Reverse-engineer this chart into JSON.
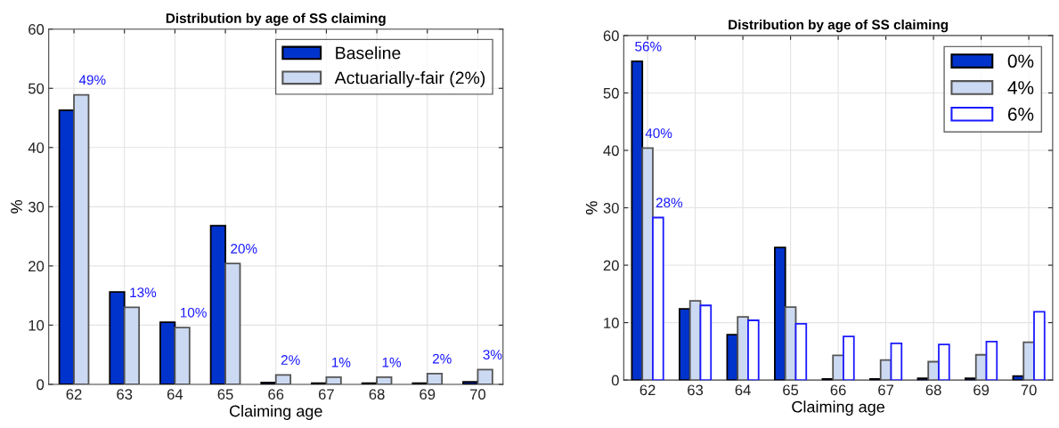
{
  "chart_data": [
    {
      "type": "bar",
      "title": "Distribution by age of SS claiming",
      "xlabel": "Claiming age",
      "ylabel": "%",
      "categories": [
        "62",
        "63",
        "64",
        "65",
        "66",
        "67",
        "68",
        "69",
        "70"
      ],
      "ylim": [
        0,
        60
      ],
      "yticks": [
        0,
        10,
        20,
        30,
        40,
        50,
        60
      ],
      "grid": true,
      "legend": "top right",
      "series": [
        {
          "name": "Baseline",
          "color": "#0033cc",
          "values": [
            46.3,
            15.6,
            10.5,
            26.8,
            0.3,
            0.2,
            0.2,
            0.2,
            0.4
          ]
        },
        {
          "name": "Actuarially-fair (2%)",
          "color": "#ccd9f2",
          "values": [
            48.9,
            13.0,
            9.6,
            20.4,
            1.6,
            1.2,
            1.2,
            1.8,
            2.5
          ],
          "value_labels": [
            "49%",
            "13%",
            "10%",
            "20%",
            "2%",
            "1%",
            "1%",
            "2%",
            "3%"
          ]
        }
      ]
    },
    {
      "type": "bar",
      "title": "Distribution by age of SS claiming",
      "xlabel": "Claiming age",
      "ylabel": "%",
      "categories": [
        "62",
        "63",
        "64",
        "65",
        "66",
        "67",
        "68",
        "69",
        "70"
      ],
      "ylim": [
        0,
        60
      ],
      "yticks": [
        0,
        10,
        20,
        30,
        40,
        50,
        60
      ],
      "grid": true,
      "legend": "top right",
      "series": [
        {
          "name": "0%",
          "color": "#0033cc",
          "values": [
            55.5,
            12.4,
            7.9,
            23.1,
            0.2,
            0.2,
            0.3,
            0.3,
            0.7
          ],
          "value_labels": [
            "56%",
            null,
            null,
            null,
            null,
            null,
            null,
            null,
            null
          ]
        },
        {
          "name": "4%",
          "color": "#ccd9f2",
          "values": [
            40.4,
            13.8,
            11.0,
            12.7,
            4.3,
            3.5,
            3.2,
            4.4,
            6.6
          ],
          "value_labels": [
            "40%",
            null,
            null,
            null,
            null,
            null,
            null,
            null,
            null
          ]
        },
        {
          "name": "6%",
          "color": "#ffffff",
          "values": [
            28.3,
            13.0,
            10.4,
            9.8,
            7.6,
            6.4,
            6.2,
            6.7,
            11.9
          ],
          "value_labels": [
            "28%",
            null,
            null,
            null,
            null,
            null,
            null,
            null,
            null
          ]
        }
      ]
    }
  ]
}
